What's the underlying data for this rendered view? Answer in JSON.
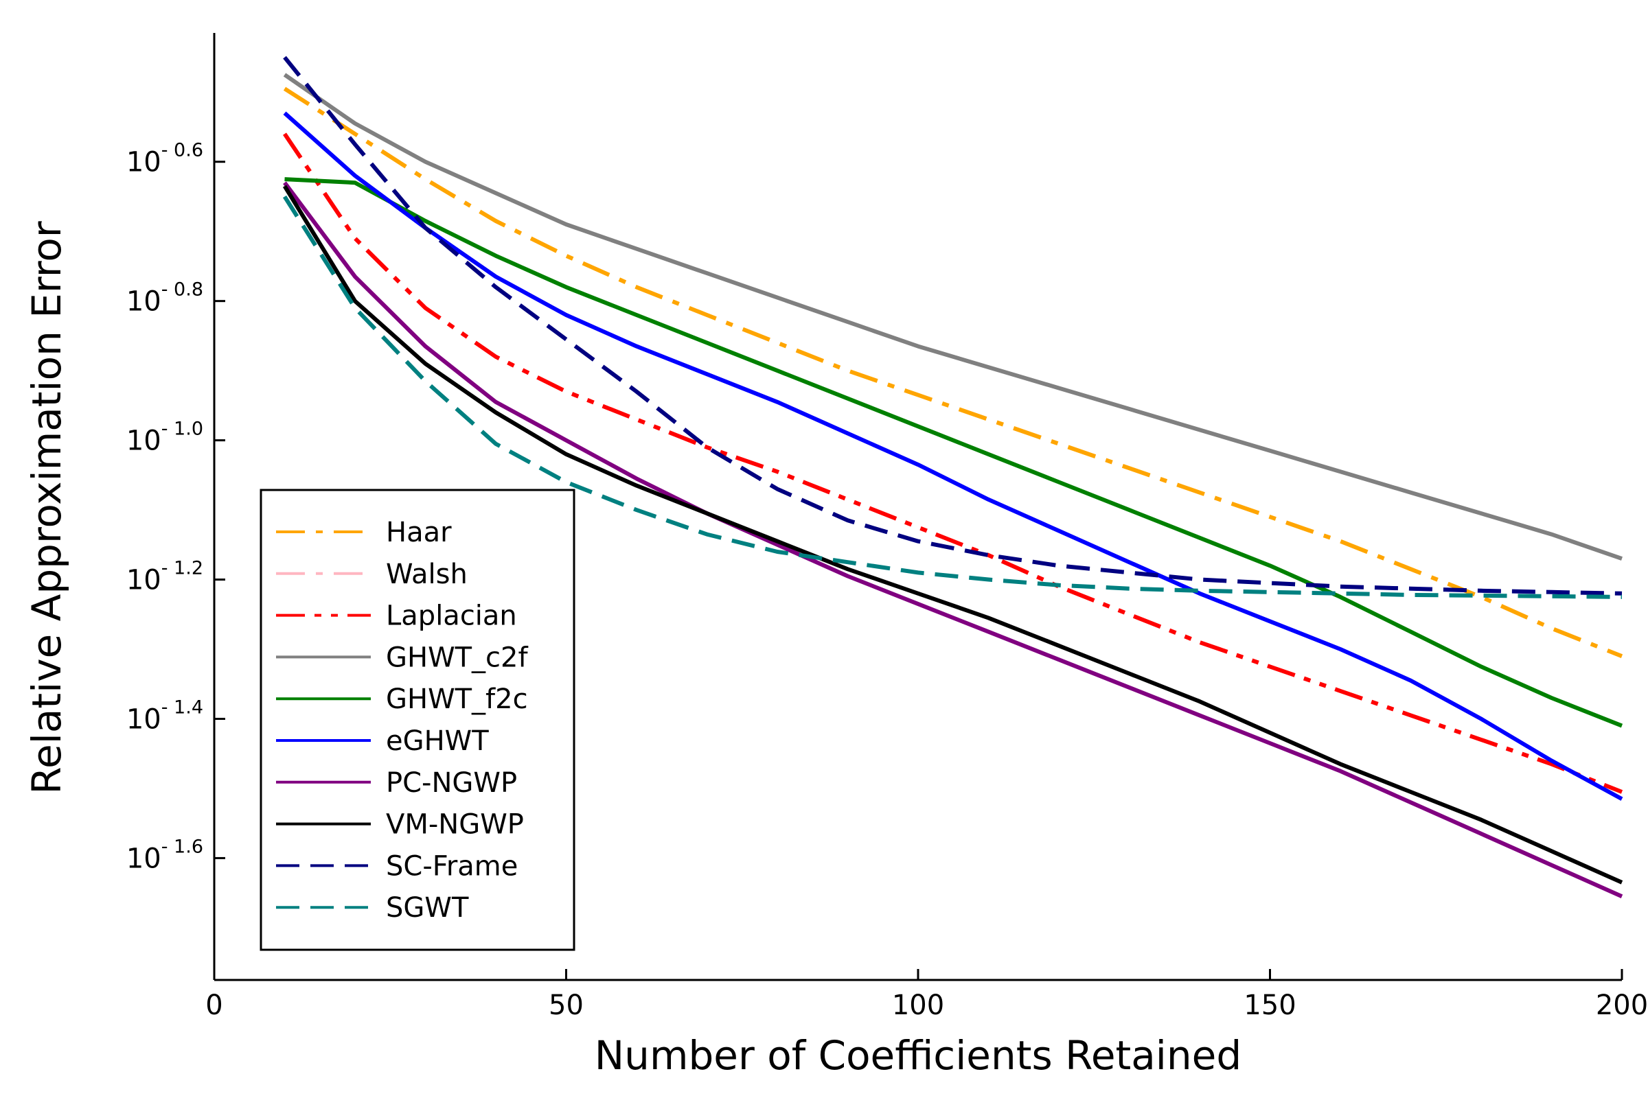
{
  "chart_data": {
    "type": "line",
    "xlabel": "Number of Coefficients Retained",
    "ylabel": "Relative Approximation Error",
    "xlim": [
      0,
      200
    ],
    "ylim_log10": [
      -1.775,
      -0.415
    ],
    "yscale": "log10",
    "x_ticks": [
      {
        "value": 0,
        "label": "0"
      },
      {
        "value": 50,
        "label": "50"
      },
      {
        "value": 100,
        "label": "100"
      },
      {
        "value": 150,
        "label": "150"
      },
      {
        "value": 200,
        "label": "200"
      }
    ],
    "y_ticks": [
      {
        "value": -0.6,
        "base": "10",
        "exp": "- 0.6"
      },
      {
        "value": -0.8,
        "base": "10",
        "exp": "- 0.8"
      },
      {
        "value": -1.0,
        "base": "10",
        "exp": "- 1.0"
      },
      {
        "value": -1.2,
        "base": "10",
        "exp": "- 1.2"
      },
      {
        "value": -1.4,
        "base": "10",
        "exp": "- 1.4"
      },
      {
        "value": -1.6,
        "base": "10",
        "exp": "- 1.6"
      }
    ],
    "grid": false,
    "legend_position": "bottom-left",
    "x": [
      10,
      20,
      30,
      40,
      50,
      60,
      70,
      80,
      90,
      100,
      110,
      120,
      130,
      140,
      150,
      160,
      170,
      180,
      190,
      200
    ],
    "series": [
      {
        "name": "Haar",
        "color": "#FFA500",
        "dash": "dashdot",
        "log10_values": [
          -0.495,
          -0.56,
          -0.625,
          -0.685,
          -0.735,
          -0.78,
          -0.82,
          -0.86,
          -0.9,
          -0.935,
          -0.97,
          -1.005,
          -1.04,
          -1.075,
          -1.11,
          -1.145,
          -1.185,
          -1.225,
          -1.27,
          -1.31
        ]
      },
      {
        "name": "Walsh",
        "color": "#FFB6C1",
        "dash": "dashdot",
        "log10_values": []
      },
      {
        "name": "Laplacian",
        "color": "#FF0000",
        "dash": "dashdotdot",
        "log10_values": [
          -0.56,
          -0.71,
          -0.81,
          -0.88,
          -0.93,
          -0.97,
          -1.01,
          -1.045,
          -1.085,
          -1.125,
          -1.165,
          -1.21,
          -1.25,
          -1.29,
          -1.325,
          -1.36,
          -1.395,
          -1.43,
          -1.465,
          -1.505
        ]
      },
      {
        "name": "GHWT_c2f",
        "color": "#808080",
        "dash": "solid",
        "log10_values": [
          -0.475,
          -0.545,
          -0.6,
          -0.645,
          -0.69,
          -0.725,
          -0.76,
          -0.795,
          -0.83,
          -0.865,
          -0.895,
          -0.925,
          -0.955,
          -0.985,
          -1.015,
          -1.045,
          -1.075,
          -1.105,
          -1.135,
          -1.17
        ]
      },
      {
        "name": "GHWT_f2c",
        "color": "#008000",
        "dash": "solid",
        "log10_values": [
          -0.625,
          -0.63,
          -0.685,
          -0.735,
          -0.78,
          -0.82,
          -0.86,
          -0.9,
          -0.94,
          -0.98,
          -1.02,
          -1.06,
          -1.1,
          -1.14,
          -1.18,
          -1.225,
          -1.275,
          -1.325,
          -1.37,
          -1.41
        ]
      },
      {
        "name": "eGHWT",
        "color": "#0000FF",
        "dash": "solid",
        "log10_values": [
          -0.53,
          -0.62,
          -0.695,
          -0.765,
          -0.82,
          -0.865,
          -0.905,
          -0.945,
          -0.99,
          -1.035,
          -1.085,
          -1.13,
          -1.175,
          -1.22,
          -1.26,
          -1.3,
          -1.345,
          -1.4,
          -1.46,
          -1.515
        ]
      },
      {
        "name": "PC-NGWP",
        "color": "#800080",
        "dash": "solid",
        "log10_values": [
          -0.63,
          -0.765,
          -0.865,
          -0.945,
          -1.0,
          -1.055,
          -1.105,
          -1.15,
          -1.195,
          -1.235,
          -1.275,
          -1.315,
          -1.355,
          -1.395,
          -1.435,
          -1.475,
          -1.52,
          -1.565,
          -1.61,
          -1.655
        ]
      },
      {
        "name": "VM-NGWP",
        "color": "#000000",
        "dash": "solid",
        "log10_values": [
          -0.635,
          -0.8,
          -0.89,
          -0.96,
          -1.02,
          -1.065,
          -1.105,
          -1.145,
          -1.185,
          -1.22,
          -1.255,
          -1.295,
          -1.335,
          -1.375,
          -1.42,
          -1.465,
          -1.505,
          -1.545,
          -1.59,
          -1.635
        ]
      },
      {
        "name": "SC-Frame",
        "color": "#000080",
        "dash": "dashed",
        "log10_values": [
          -0.45,
          -0.575,
          -0.695,
          -0.78,
          -0.855,
          -0.93,
          -1.01,
          -1.07,
          -1.115,
          -1.145,
          -1.165,
          -1.18,
          -1.19,
          -1.2,
          -1.205,
          -1.21,
          -1.213,
          -1.216,
          -1.218,
          -1.22
        ]
      },
      {
        "name": "SGWT",
        "color": "#008080",
        "dash": "dashed",
        "log10_values": [
          -0.65,
          -0.81,
          -0.915,
          -1.005,
          -1.06,
          -1.1,
          -1.135,
          -1.16,
          -1.175,
          -1.19,
          -1.2,
          -1.208,
          -1.213,
          -1.216,
          -1.218,
          -1.22,
          -1.222,
          -1.223,
          -1.224,
          -1.225
        ]
      }
    ]
  }
}
